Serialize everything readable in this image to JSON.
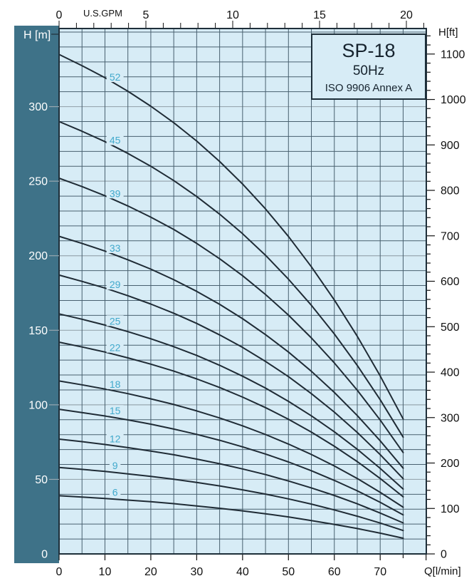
{
  "title_box": {
    "model": "SP-18",
    "frequency": "50Hz",
    "standard": "ISO 9906 Annex A"
  },
  "axis_titles": {
    "left": "H [m]",
    "top": "U.S.GPM",
    "right": "H[ft]",
    "bottom": "Q[l/min]"
  },
  "colors": {
    "page_bg": "#ffffff",
    "plot_bg": "#d7ecf6",
    "band": "#3e7288",
    "band_text": "#ffffff",
    "grid_minor": "#48606f",
    "grid_major": "#98a7b0",
    "curve": "#1f2b35",
    "curve_label": "#41a9cc",
    "border": "#1e2f3a",
    "text": "#111111"
  },
  "chart_data": {
    "type": "line",
    "title": "SP-18 50Hz ISO 9906 Annex A",
    "xlabel": "Q[l/min]",
    "x2label": "U.S.GPM",
    "ylabel": "H [m]",
    "y2label": "H[ft]",
    "xlim_lmin": [
      0,
      80
    ],
    "ylim_m": [
      0,
      352
    ],
    "x_gridline_step_lmin": 5,
    "y_gridline_step_m": 10,
    "grid": true,
    "left_ticks_m": [
      0,
      50,
      100,
      150,
      200,
      250,
      300
    ],
    "top_ticks_gpm": [
      0,
      5,
      10,
      15,
      20
    ],
    "right_ticks_ft": [
      0,
      100,
      200,
      300,
      400,
      500,
      600,
      700,
      800,
      900,
      1000,
      1100
    ],
    "bottom_ticks_lmin": [
      0,
      10,
      20,
      30,
      40,
      50,
      60,
      70
    ],
    "x_lmin": [
      0,
      5,
      10,
      15,
      20,
      25,
      30,
      35,
      40,
      45,
      50,
      55,
      60,
      65,
      70,
      75
    ],
    "series": [
      {
        "name": "52",
        "stages": 52,
        "shutoff_head_m": 335,
        "head_m": [
          335,
          327.5,
          319.4,
          310.3,
          300.3,
          289.2,
          276.9,
          263.2,
          248.1,
          231.4,
          212.9,
          192.6,
          170.3,
          146.0,
          119.4,
          90.5
        ]
      },
      {
        "name": "45",
        "stages": 45,
        "shutoff_head_m": 290,
        "head_m": [
          290,
          283.5,
          276.5,
          268.6,
          260.0,
          250.4,
          239.7,
          227.9,
          214.8,
          200.3,
          184.3,
          166.8,
          147.5,
          126.4,
          103.4,
          78.3
        ]
      },
      {
        "name": "39",
        "stages": 39,
        "shutoff_head_m": 252,
        "head_m": [
          252,
          246.4,
          240.2,
          233.4,
          225.9,
          217.6,
          208.3,
          198.0,
          186.6,
          174.0,
          160.2,
          144.9,
          128.1,
          109.8,
          89.8,
          68.0
        ]
      },
      {
        "name": "33",
        "stages": 33,
        "shutoff_head_m": 213,
        "head_m": [
          213,
          208.3,
          203.1,
          197.3,
          191.0,
          183.9,
          176.1,
          167.4,
          157.8,
          147.1,
          135.4,
          122.5,
          108.3,
          92.8,
          75.9,
          57.5
        ]
      },
      {
        "name": "29",
        "stages": 29,
        "shutoff_head_m": 187,
        "head_m": [
          187,
          182.8,
          178.3,
          173.2,
          167.6,
          161.4,
          154.6,
          146.9,
          138.5,
          129.1,
          118.9,
          107.5,
          95.1,
          81.5,
          66.6,
          50.5
        ]
      },
      {
        "name": "25",
        "stages": 25,
        "shutoff_head_m": 161,
        "head_m": [
          161,
          157.4,
          153.5,
          149.1,
          144.3,
          139.0,
          133.1,
          126.5,
          119.2,
          111.2,
          102.3,
          92.6,
          81.9,
          70.2,
          57.4,
          43.5
        ]
      },
      {
        "name": "22",
        "stages": 22,
        "shutoff_head_m": 142,
        "head_m": [
          142,
          138.8,
          135.4,
          131.5,
          127.3,
          122.6,
          117.4,
          111.6,
          105.2,
          98.1,
          90.3,
          81.7,
          72.2,
          61.9,
          50.6,
          38.3
        ]
      },
      {
        "name": "18",
        "stages": 18,
        "shutoff_head_m": 116,
        "head_m": [
          116,
          113.4,
          110.6,
          107.5,
          104.0,
          100.2,
          95.9,
          91.2,
          85.9,
          80.1,
          73.7,
          66.7,
          59.0,
          50.6,
          41.3,
          31.3
        ]
      },
      {
        "name": "15",
        "stages": 15,
        "shutoff_head_m": 97,
        "head_m": [
          97,
          94.8,
          92.5,
          89.9,
          87.0,
          83.7,
          80.2,
          76.2,
          71.8,
          67.0,
          61.7,
          55.8,
          49.3,
          42.3,
          34.6,
          26.2
        ]
      },
      {
        "name": "12",
        "stages": 12,
        "shutoff_head_m": 77,
        "head_m": [
          77,
          75.3,
          73.4,
          71.3,
          69.0,
          66.5,
          63.6,
          60.5,
          57.0,
          53.2,
          48.9,
          44.3,
          39.2,
          33.6,
          27.4,
          20.8
        ]
      },
      {
        "name": "9",
        "stages": 9,
        "shutoff_head_m": 58,
        "head_m": [
          58,
          56.7,
          55.3,
          53.7,
          52.0,
          50.1,
          47.9,
          45.6,
          43.0,
          40.1,
          36.9,
          33.4,
          29.5,
          25.3,
          20.7,
          15.7
        ]
      },
      {
        "name": "6",
        "stages": 6,
        "shutoff_head_m": 39,
        "head_m": [
          39,
          38.1,
          37.2,
          36.1,
          35.0,
          33.7,
          32.2,
          30.6,
          28.9,
          26.9,
          24.8,
          22.4,
          19.8,
          17.0,
          13.9,
          10.5
        ]
      }
    ]
  }
}
